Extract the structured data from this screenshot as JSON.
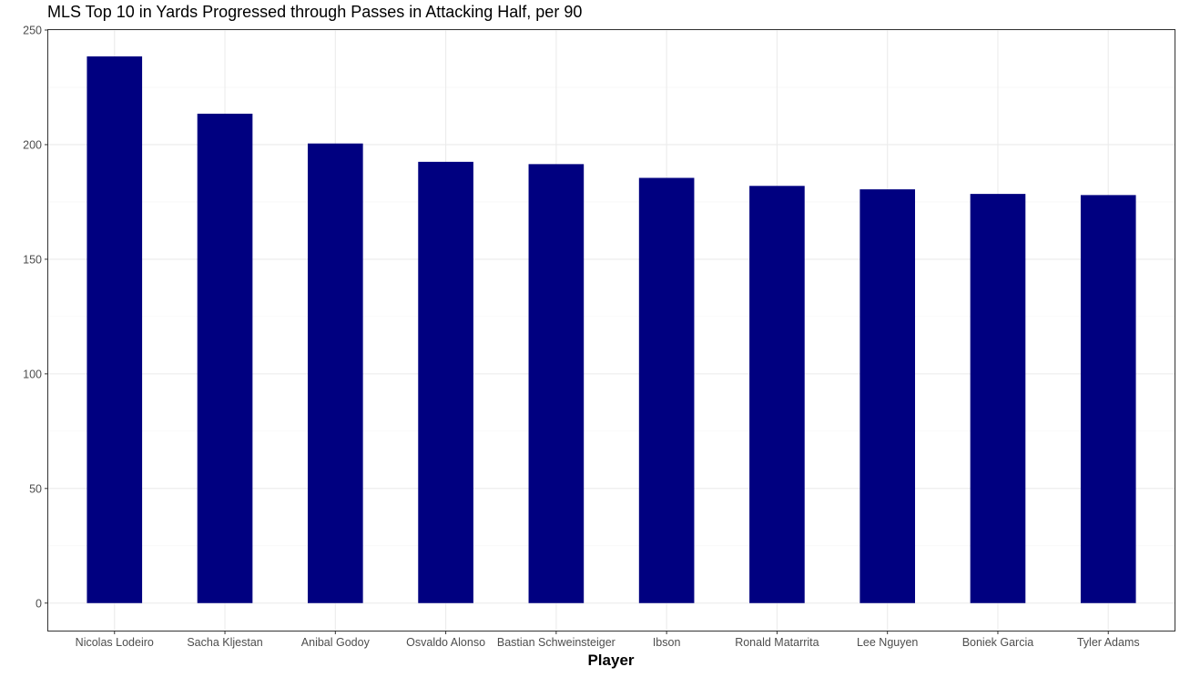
{
  "chart_data": {
    "type": "bar",
    "title": "MLS Top 10 in Yards Progressed through Passes in Attacking Half, per 90",
    "xlabel": "Player",
    "ylabel": "",
    "categories": [
      "Nicolas Lodeiro",
      "Sacha Kljestan",
      "Anibal Godoy",
      "Osvaldo Alonso",
      "Bastian Schweinsteiger",
      "Ibson",
      "Ronald Matarrita",
      "Lee Nguyen",
      "Boniek Garcia",
      "Tyler Adams"
    ],
    "values": [
      238.5,
      213.5,
      200.5,
      192.5,
      191.5,
      185.5,
      182,
      180.5,
      178.5,
      178
    ],
    "ylim": [
      -12,
      250
    ],
    "yticks": [
      0,
      50,
      100,
      150,
      200,
      250
    ],
    "grid": true,
    "legend": "none",
    "bar_color": "#000080",
    "theme": "bw"
  }
}
